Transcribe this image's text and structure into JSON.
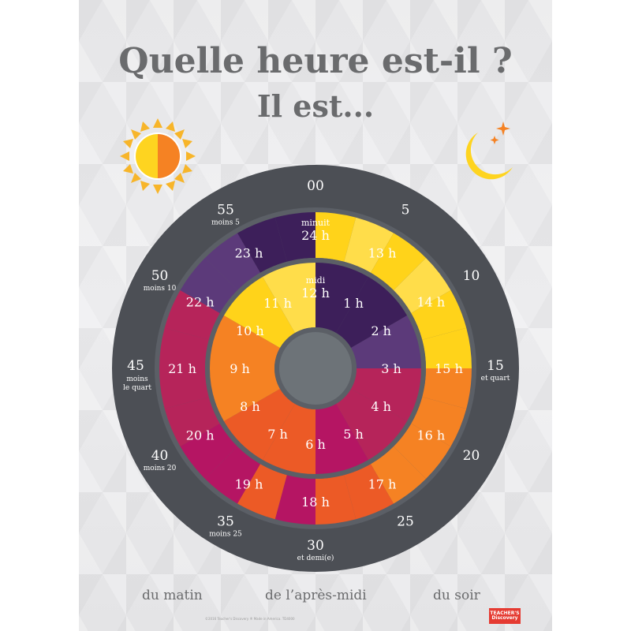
{
  "title": "Quelle heure est-il ?",
  "subtitle": "Il est...",
  "colors": {
    "dark_ring": "#4c4f55",
    "gray_text": "#6a6b6d",
    "yellow": "#ffd31a",
    "yellow_light": "#ffdd4a",
    "orange": "#f58223",
    "red_orange": "#ec5a26",
    "magenta": "#b51563",
    "crimson": "#b6245a",
    "purple": "#5c3a7a",
    "dark_purple": "#3d1f5a",
    "sun": "#f7b52a",
    "moon": "#fed420",
    "center": "#6d7378"
  },
  "icons": {
    "day": "sun-icon",
    "night": "moon-icon"
  },
  "minutes": [
    {
      "value": "00",
      "sub": ""
    },
    {
      "value": "5",
      "sub": ""
    },
    {
      "value": "10",
      "sub": ""
    },
    {
      "value": "15",
      "sub": "et quart"
    },
    {
      "value": "20",
      "sub": ""
    },
    {
      "value": "25",
      "sub": ""
    },
    {
      "value": "30",
      "sub": "et demi(e)"
    },
    {
      "value": "35",
      "sub": "moins 25"
    },
    {
      "value": "40",
      "sub": "moins 20"
    },
    {
      "value": "45",
      "sub": "moins le quart"
    },
    {
      "value": "50",
      "sub": "moins 10"
    },
    {
      "value": "55",
      "sub": "moins 5"
    }
  ],
  "outer_hours": [
    "24 h",
    "13 h",
    "14 h",
    "15 h",
    "16 h",
    "17 h",
    "18 h",
    "19 h",
    "20 h",
    "21 h",
    "22 h",
    "23 h"
  ],
  "inner_hours": [
    "12 h",
    "1 h",
    "2 h",
    "3 h",
    "4 h",
    "5 h",
    "6 h",
    "7 h",
    "8 h",
    "9 h",
    "10 h",
    "11 h"
  ],
  "special": {
    "minuit": "minuit",
    "midi": "midi"
  },
  "periods": {
    "morning": "du matin",
    "afternoon": "de l’après-midi",
    "evening": "du soir"
  },
  "footer": "©2016 Teacher's Discovery ® Made in America. TD4000",
  "brand": "TEACHER'S Discovery"
}
